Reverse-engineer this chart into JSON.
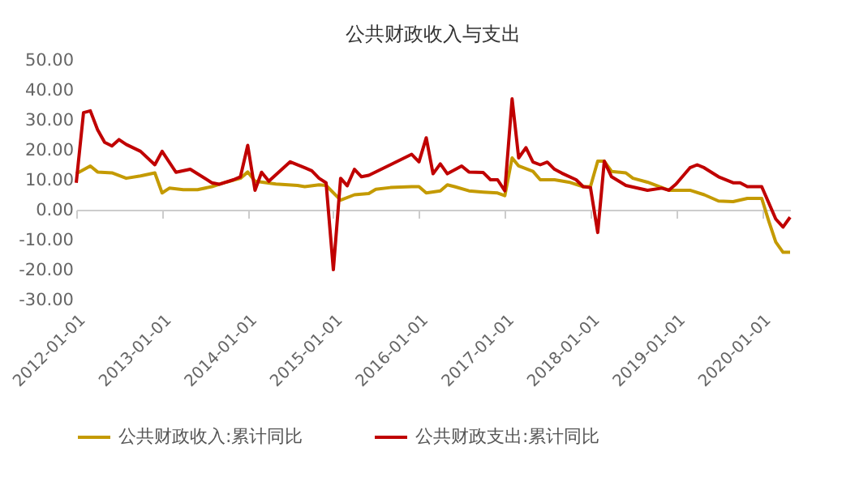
{
  "chart_data": {
    "type": "line",
    "title": "公共财政收入与支出",
    "xlim": [
      "2012-01-01",
      "2020-05-01"
    ],
    "xticks": [
      "2012-01-01",
      "2013-01-01",
      "2014-01-01",
      "2015-01-01",
      "2016-01-01",
      "2017-01-01",
      "2018-01-01",
      "2019-01-01",
      "2020-01-01"
    ],
    "ylim": [
      -30,
      50
    ],
    "yticks": [
      {
        "value": -30,
        "label": "-30.00"
      },
      {
        "value": -20,
        "label": "-20.00"
      },
      {
        "value": -10,
        "label": "-10.00"
      },
      {
        "value": 0,
        "label": "0.00"
      },
      {
        "value": 10,
        "label": "10.00"
      },
      {
        "value": 20,
        "label": "20.00"
      },
      {
        "value": 30,
        "label": "30.00"
      },
      {
        "value": 40,
        "label": "40.00"
      },
      {
        "value": 50,
        "label": "50.00"
      }
    ],
    "legend": "bottom",
    "line_style": "solid",
    "marker": "none",
    "series": [
      {
        "name": "公共财政收入:累计同比",
        "color": "#c49a00",
        "x": [
          "2012-01",
          "2012-03",
          "2012-04",
          "2012-06",
          "2012-08",
          "2012-10",
          "2012-12",
          "2013-01",
          "2013-02",
          "2013-04",
          "2013-06",
          "2013-08",
          "2013-10",
          "2013-12",
          "2014-01",
          "2014-02",
          "2014-05",
          "2014-08",
          "2014-09",
          "2014-11",
          "2014-12",
          "2015-02",
          "2015-04",
          "2015-06",
          "2015-07",
          "2015-09",
          "2015-12",
          "2016-01",
          "2016-02",
          "2016-04",
          "2016-05",
          "2016-06",
          "2016-08",
          "2016-10",
          "2016-12",
          "2017-01",
          "2017-02",
          "2017-03",
          "2017-05",
          "2017-06",
          "2017-08",
          "2017-10",
          "2017-12",
          "2018-01",
          "2018-02",
          "2018-03",
          "2018-04",
          "2018-06",
          "2018-07",
          "2018-09",
          "2018-12",
          "2019-01",
          "2019-03",
          "2019-05",
          "2019-07",
          "2019-09",
          "2019-11",
          "2020-01",
          "2020-02",
          "2020-03",
          "2020-04",
          "2020-05"
        ],
        "values": [
          12.0,
          14.6,
          12.6,
          12.3,
          10.5,
          11.3,
          12.3,
          5.6,
          7.2,
          6.7,
          6.7,
          7.7,
          9.2,
          10.5,
          12.6,
          9.5,
          8.6,
          8.1,
          7.7,
          8.3,
          8.1,
          3.2,
          5.0,
          5.4,
          6.8,
          7.4,
          7.7,
          7.7,
          5.6,
          6.3,
          8.3,
          7.7,
          6.3,
          5.9,
          5.6,
          4.7,
          17.3,
          14.6,
          12.8,
          10.0,
          10.0,
          9.2,
          7.7,
          7.7,
          16.2,
          16.2,
          12.8,
          12.3,
          10.5,
          9.2,
          6.5,
          6.5,
          6.5,
          5.0,
          2.9,
          2.7,
          3.8,
          3.8,
          -4.0,
          -10.8,
          -14.2,
          -14.2
        ]
      },
      {
        "name": "公共财政支出:累计同比",
        "color": "#c00000",
        "x": [
          "2012-01",
          "2012-02",
          "2012-03",
          "2012-04",
          "2012-05",
          "2012-06",
          "2012-07",
          "2012-08",
          "2012-10",
          "2012-12",
          "2013-01",
          "2013-03",
          "2013-05",
          "2013-08",
          "2013-09",
          "2013-11",
          "2013-12",
          "2014-01",
          "2014-02",
          "2014-03",
          "2014-04",
          "2014-07",
          "2014-09",
          "2014-10",
          "2014-11",
          "2014-12",
          "2015-01",
          "2015-02",
          "2015-03",
          "2015-04",
          "2015-05",
          "2015-06",
          "2015-09",
          "2015-12",
          "2016-01",
          "2016-02",
          "2016-03",
          "2016-04",
          "2016-05",
          "2016-07",
          "2016-08",
          "2016-10",
          "2016-11",
          "2016-12",
          "2017-01",
          "2017-02",
          "2017-03",
          "2017-04",
          "2017-05",
          "2017-06",
          "2017-07",
          "2017-08",
          "2017-09",
          "2017-11",
          "2017-12",
          "2018-01",
          "2018-02",
          "2018-03",
          "2018-04",
          "2018-06",
          "2018-09",
          "2018-11",
          "2018-12",
          "2019-01",
          "2019-03",
          "2019-04",
          "2019-05",
          "2019-07",
          "2019-09",
          "2019-10",
          "2019-11",
          "2020-01",
          "2020-03",
          "2020-04",
          "2020-05"
        ],
        "values": [
          9.0,
          32.4,
          33.0,
          26.7,
          22.5,
          21.3,
          23.4,
          21.8,
          19.5,
          15.0,
          19.5,
          12.5,
          13.5,
          9.0,
          8.5,
          10.0,
          11.0,
          21.5,
          6.5,
          12.5,
          9.5,
          16.0,
          14.0,
          13.0,
          10.5,
          9.0,
          -20.0,
          10.5,
          8.0,
          13.5,
          11.0,
          11.5,
          15.0,
          18.5,
          16.0,
          24.0,
          12.0,
          15.3,
          12.0,
          14.6,
          12.6,
          12.4,
          10.0,
          10.0,
          6.3,
          37.0,
          17.3,
          20.7,
          15.9,
          15.0,
          15.9,
          13.5,
          12.2,
          10.0,
          7.7,
          7.4,
          -7.6,
          16.2,
          11.0,
          8.1,
          6.5,
          7.2,
          6.5,
          8.6,
          14.0,
          15.0,
          14.0,
          11.0,
          9.0,
          9.0,
          7.7,
          7.7,
          -3.1,
          -5.8,
          -2.5
        ]
      }
    ]
  }
}
